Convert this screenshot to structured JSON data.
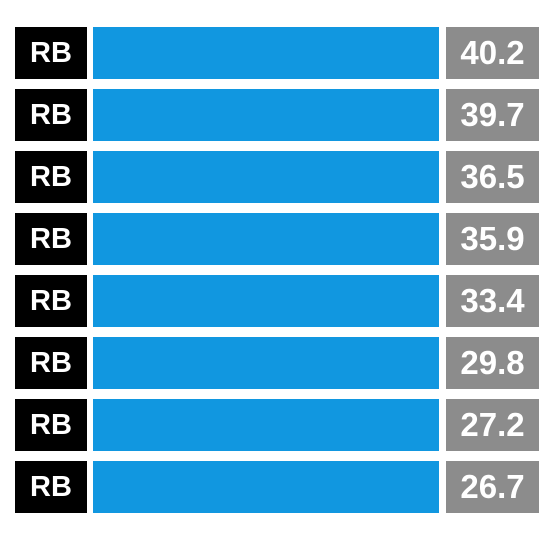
{
  "rows": [
    {
      "position": "RB",
      "value": 40.2
    },
    {
      "position": "RB",
      "value": 39.7
    },
    {
      "position": "RB",
      "value": 36.5
    },
    {
      "position": "RB",
      "value": 35.9
    },
    {
      "position": "RB",
      "value": 33.4
    },
    {
      "position": "RB",
      "value": 29.8
    },
    {
      "position": "RB",
      "value": 27.2
    },
    {
      "position": "RB",
      "value": 26.7
    }
  ]
}
